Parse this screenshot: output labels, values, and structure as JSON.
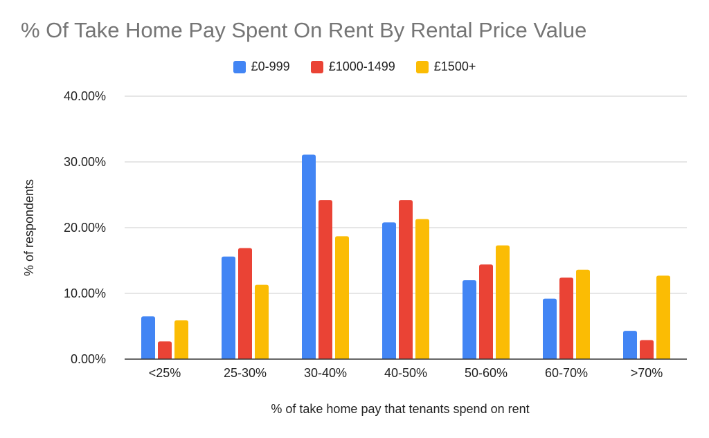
{
  "chart_data": {
    "type": "bar",
    "title": "% Of Take Home Pay Spent On Rent By Rental Price Value",
    "xlabel": "% of take home pay that tenants spend on rent",
    "ylabel": "% of respondents",
    "categories": [
      "<25%",
      "25-30%",
      "30-40%",
      "40-50%",
      "50-60%",
      "60-70%",
      ">70%"
    ],
    "series": [
      {
        "name": "£0-999",
        "color": "#4285F4",
        "values": [
          6.5,
          15.6,
          31.1,
          20.8,
          12.0,
          9.2,
          4.3
        ]
      },
      {
        "name": "£1000-1499",
        "color": "#EA4335",
        "values": [
          2.7,
          16.9,
          24.2,
          24.2,
          14.4,
          12.4,
          2.9
        ]
      },
      {
        "name": "£1500+",
        "color": "#FBBC04",
        "values": [
          5.9,
          11.3,
          18.7,
          21.3,
          17.3,
          13.6,
          12.7
        ]
      }
    ],
    "ylim": [
      0,
      40
    ],
    "yticks": [
      "0.00%",
      "10.00%",
      "20.00%",
      "30.00%",
      "40.00%"
    ],
    "grid": true,
    "legend_position": "top-center"
  }
}
